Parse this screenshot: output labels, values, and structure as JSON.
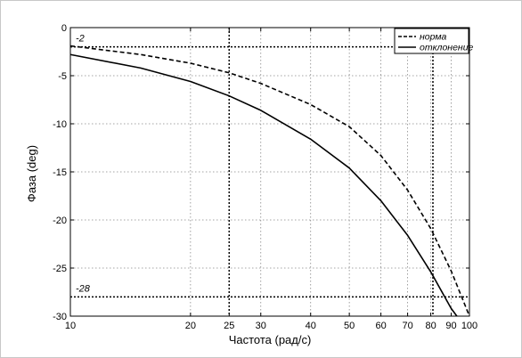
{
  "chart_data": {
    "type": "line",
    "xscale": "log",
    "xlabel": "Частота (рад/с)",
    "ylabel": "Фаза (deg)",
    "xlim": [
      10,
      100
    ],
    "ylim": [
      -30,
      0
    ],
    "xticks": [
      10,
      20,
      25,
      30,
      40,
      50,
      60,
      70,
      80,
      90,
      100
    ],
    "xtick_labels": [
      "10",
      "20",
      "25",
      "30",
      "40",
      "50",
      "60",
      "70",
      "80",
      "90",
      "100"
    ],
    "yticks": [
      0,
      -5,
      -10,
      -15,
      -20,
      -25,
      -30
    ],
    "ytick_labels": [
      "0",
      "-5",
      "-10",
      "-15",
      "-20",
      "-25",
      "-30"
    ],
    "grid": true,
    "legend_position": "top-right",
    "series": [
      {
        "name": "норма",
        "style": "dashed",
        "x": [
          10,
          15,
          20,
          25,
          30,
          40,
          50,
          60,
          70,
          80,
          90,
          100
        ],
        "y": [
          -1.9,
          -2.8,
          -3.7,
          -4.7,
          -5.8,
          -8.0,
          -10.3,
          -13.3,
          -16.9,
          -20.9,
          -25.3,
          -30.0
        ]
      },
      {
        "name": "отклонение",
        "style": "solid",
        "x": [
          10,
          15,
          20,
          25,
          30,
          40,
          50,
          60,
          70,
          80,
          90,
          93
        ],
        "y": [
          -2.8,
          -4.2,
          -5.6,
          -7.1,
          -8.6,
          -11.6,
          -14.6,
          -18.0,
          -21.6,
          -25.4,
          -29.2,
          -30.0
        ]
      }
    ],
    "reference_lines": {
      "horizontal": [
        -2,
        -28
      ],
      "vertical": [
        25,
        81
      ]
    },
    "annotations": [
      "-2",
      "-28"
    ]
  }
}
